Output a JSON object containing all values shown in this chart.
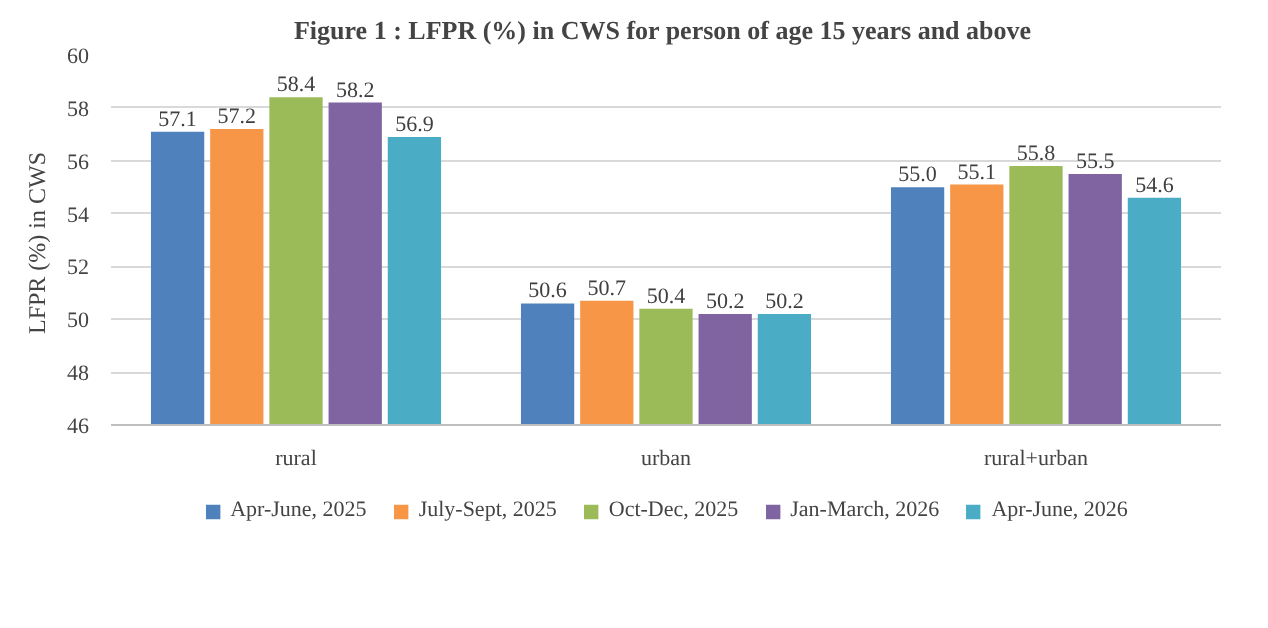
{
  "chart_data": {
    "type": "bar",
    "title": "Figure 1 : LFPR  (%) in CWS for person of age 15 years and above",
    "ylabel": "LFPR  (%) in CWS",
    "categories": [
      "rural",
      "urban",
      "rural+urban"
    ],
    "series": [
      {
        "name": "Apr-June, 2025",
        "color": "#4f81bd",
        "values": [
          57.1,
          50.6,
          55.0
        ],
        "value_labels": [
          "57.1",
          "50.6",
          "55.0"
        ]
      },
      {
        "name": "July-Sept, 2025",
        "color": "#f79646",
        "values": [
          57.2,
          50.7,
          55.1
        ],
        "value_labels": [
          "57.2",
          "50.7",
          "55.1"
        ]
      },
      {
        "name": "Oct-Dec, 2025",
        "color": "#9bbb59",
        "values": [
          58.4,
          50.4,
          55.8
        ],
        "value_labels": [
          "58.4",
          "50.4",
          "55.8"
        ]
      },
      {
        "name": "Jan-March, 2026",
        "color": "#8064a2",
        "values": [
          58.2,
          50.2,
          55.5
        ],
        "value_labels": [
          "58.2",
          "50.2",
          "55.5"
        ]
      },
      {
        "name": "Apr-June, 2026",
        "color": "#4bacc6",
        "values": [
          56.9,
          50.2,
          54.6
        ],
        "value_labels": [
          "56.9",
          "50.2",
          "54.6"
        ]
      }
    ],
    "ylim": [
      46,
      60
    ],
    "yticks": [
      46,
      48,
      50,
      52,
      54,
      56,
      58,
      60
    ],
    "grid": "y",
    "legend": "bottom"
  }
}
